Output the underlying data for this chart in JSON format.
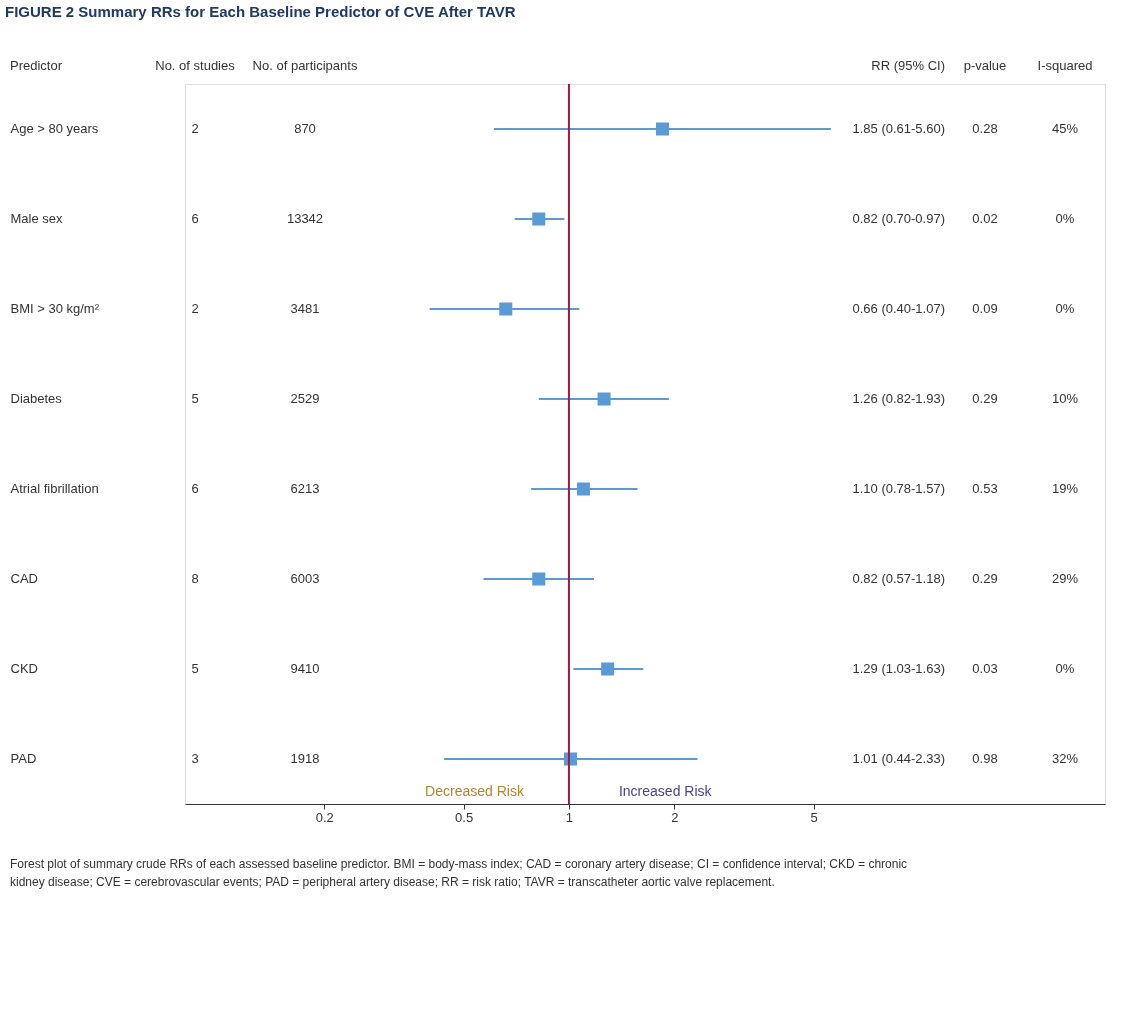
{
  "chart_data": {
    "type": "scatter",
    "title": "FIGURE 2 Summary RRs for Each Baseline Predictor of CVE After TAVR",
    "ylabel": "Predictor",
    "categories": [
      "Age > 80 years",
      "Male sex",
      "BMI > 30 kg/m²",
      "Diabetes",
      "Atrial fibrillation",
      "CAD",
      "CKD",
      "PAD"
    ],
    "series": [
      {
        "color": "#5b9bd5",
        "values": [
          1.85,
          0.82,
          0.66,
          1.26,
          1.1,
          0.82,
          1.29,
          1.01
        ],
        "errors": [
          [
            0.61,
            5.6
          ],
          [
            0.7,
            0.97
          ],
          [
            0.4,
            1.07
          ],
          [
            0.82,
            1.93
          ],
          [
            0.78,
            1.57
          ],
          [
            0.57,
            1.18
          ],
          [
            1.03,
            1.63
          ],
          [
            0.44,
            2.33
          ]
        ]
      }
    ],
    "log": "x",
    "xlim": [
      0.08,
      34
    ],
    "xticks": [
      0.2,
      0.5,
      1,
      2,
      5
    ],
    "grid": false,
    "orientation": "horizontal",
    "marker": "square",
    "ref_lines": [
      {
        "axis": "x",
        "value": 1,
        "color": "#a6173d"
      }
    ],
    "annotations": [
      "No. of studies",
      "No. of participants",
      "RR (95% CI)",
      "p-value",
      "I-squared",
      "2",
      "870",
      "1.85 (0.61-5.60)",
      "0.28",
      "45%",
      "6",
      "13342",
      "0.82 (0.70-0.97)",
      "0.02",
      "0%",
      "2",
      "3481",
      "0.66 (0.40-1.07)",
      "0.09",
      "0%",
      "5",
      "2529",
      "1.26 (0.82-1.93)",
      "0.29",
      "10%",
      "6",
      "6213",
      "1.10 (0.78-1.57)",
      "0.53",
      "19%",
      "8",
      "6003",
      "0.82 (0.57-1.18)",
      "0.29",
      "29%",
      "5",
      "9410",
      "1.29 (1.03-1.63)",
      "0.03",
      "0%",
      "3",
      "1918",
      "1.01 (0.44-2.33)",
      "0.98",
      "32%",
      "Decreased Risk",
      "Increased Risk",
      "Forest plot of summary crude RRs of each assessed baseline predictor. BMI = body-mass index; CAD = coronary artery disease; CI = confidence interval; CKD = chronic kidney disease; CVE = cerebrovascular events; PAD = peripheral artery disease; RR = risk ratio; TAVR = transcatheter aortic valve replacement."
    ]
  }
}
